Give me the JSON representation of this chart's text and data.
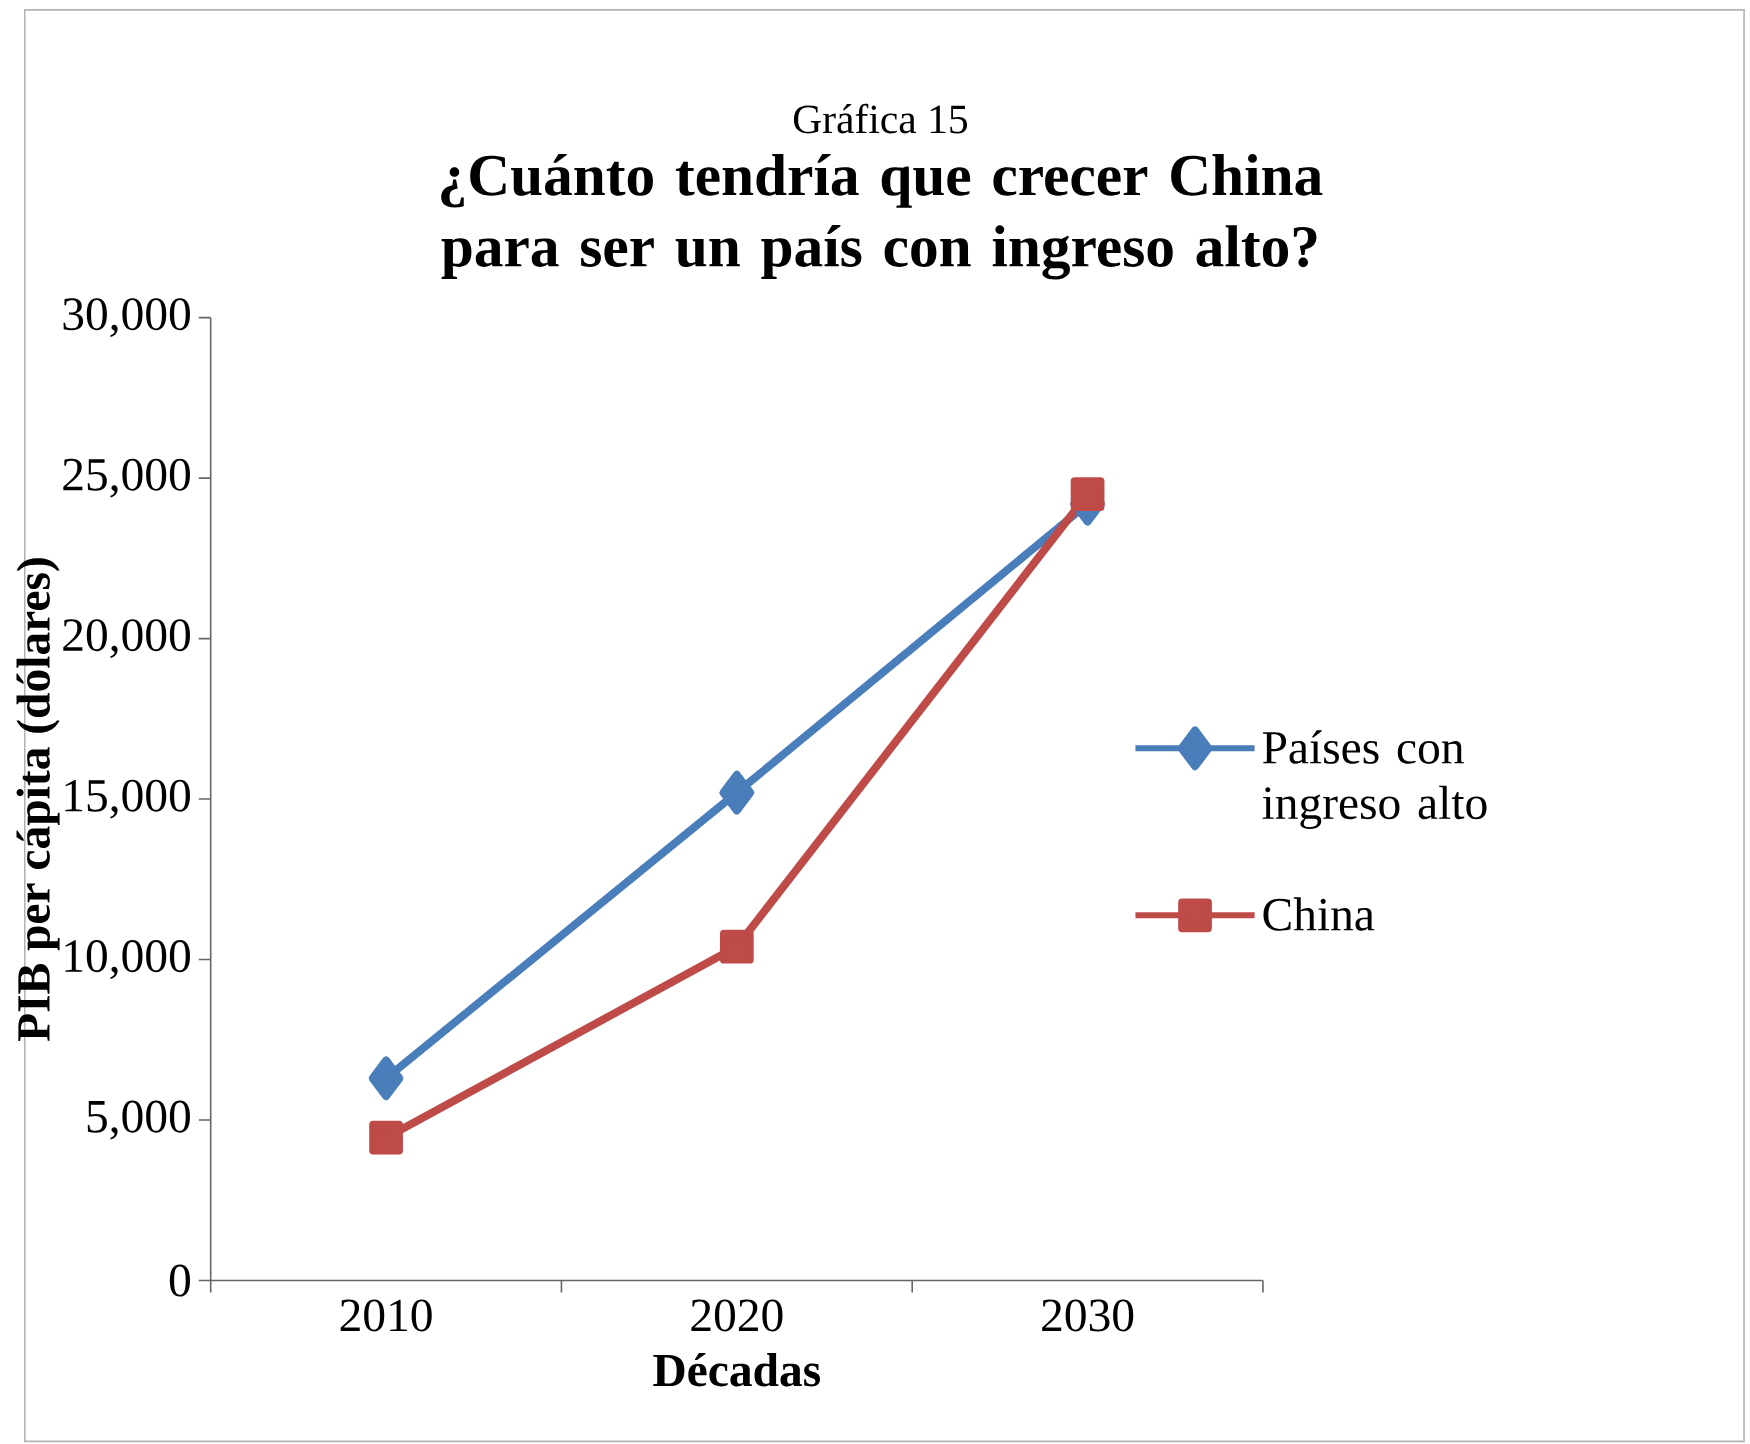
{
  "chart_data": {
    "type": "line",
    "subtitle": "Gráfica 15",
    "title": "¿Cuánto tendría que crecer China para ser un país con ingreso alto?",
    "xlabel": "Décadas",
    "ylabel": "PIB per cápita (dólares)",
    "categories": [
      "2010",
      "2020",
      "2030"
    ],
    "series": [
      {
        "name": "Países con ingreso alto",
        "color": "#4a7ebb",
        "marker": "diamond",
        "values": [
          6300,
          15200,
          24200
        ]
      },
      {
        "name": "China",
        "color": "#be4b48",
        "marker": "square",
        "values": [
          4450,
          10400,
          24500
        ]
      }
    ],
    "ylim": [
      0,
      30000
    ],
    "yticks": [
      0,
      {
        "value": 5000,
        "label": "5,000"
      },
      {
        "value": 10000,
        "label": "10,000"
      },
      {
        "value": 15000,
        "label": "15,000"
      },
      {
        "value": 20000,
        "label": "20,000"
      },
      {
        "value": 25000,
        "label": "25,000"
      },
      {
        "value": 30000,
        "label": "30,000"
      }
    ],
    "grid": false,
    "legend": "right",
    "line_style": "solid"
  }
}
